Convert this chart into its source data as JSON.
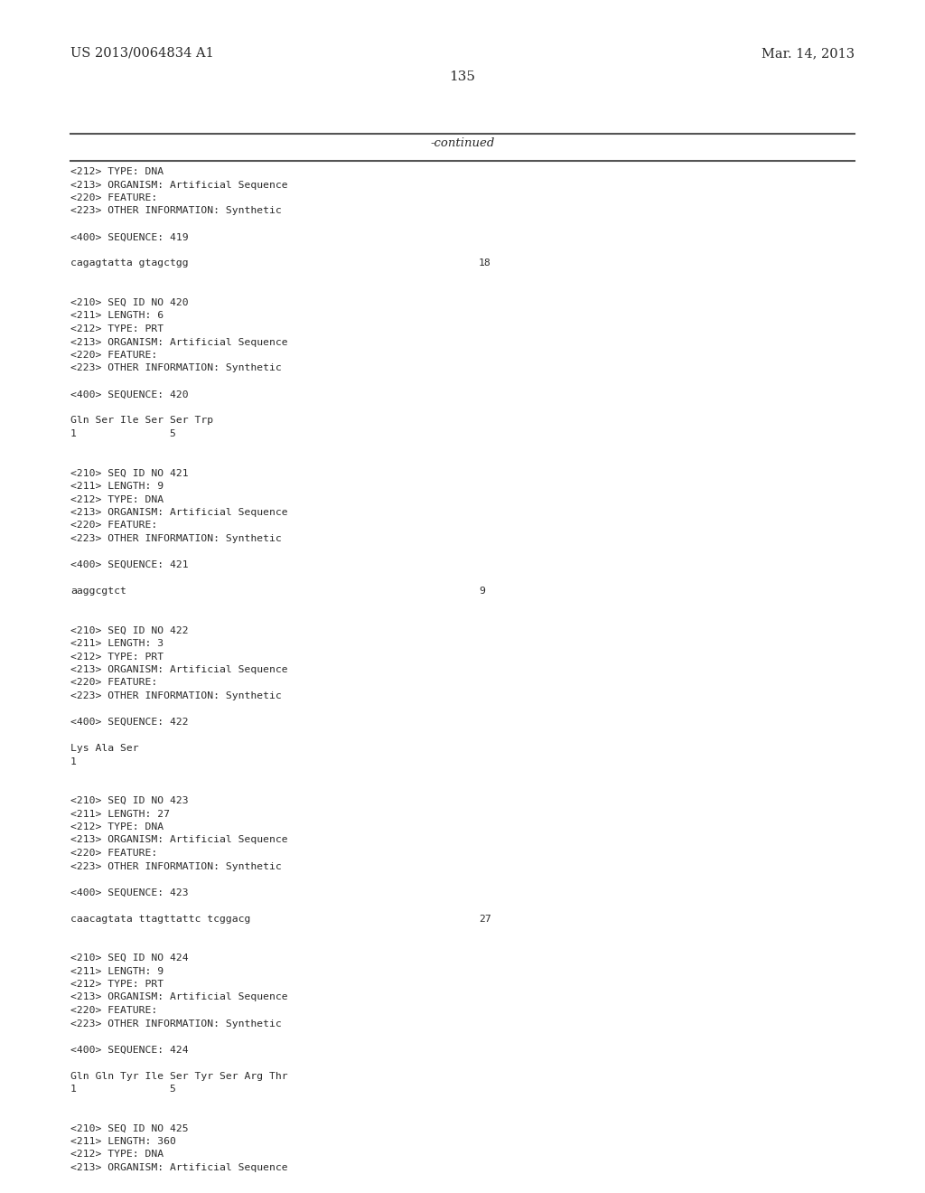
{
  "bg_color": "#ffffff",
  "text_color": "#2a2a2a",
  "header_left": "US 2013/0064834 A1",
  "header_right": "Mar. 14, 2013",
  "page_number": "135",
  "continued_label": "-continued",
  "lines": [
    {
      "text": "<212> TYPE: DNA",
      "blank": false
    },
    {
      "text": "<213> ORGANISM: Artificial Sequence",
      "blank": false
    },
    {
      "text": "<220> FEATURE:",
      "blank": false
    },
    {
      "text": "<223> OTHER INFORMATION: Synthetic",
      "blank": false
    },
    {
      "text": "",
      "blank": true
    },
    {
      "text": "<400> SEQUENCE: 419",
      "blank": false
    },
    {
      "text": "",
      "blank": true
    },
    {
      "text": "cagagtatta gtagctgg",
      "blank": false,
      "num": "18",
      "has_num": true
    },
    {
      "text": "",
      "blank": true
    },
    {
      "text": "",
      "blank": true
    },
    {
      "text": "<210> SEQ ID NO 420",
      "blank": false
    },
    {
      "text": "<211> LENGTH: 6",
      "blank": false
    },
    {
      "text": "<212> TYPE: PRT",
      "blank": false
    },
    {
      "text": "<213> ORGANISM: Artificial Sequence",
      "blank": false
    },
    {
      "text": "<220> FEATURE:",
      "blank": false
    },
    {
      "text": "<223> OTHER INFORMATION: Synthetic",
      "blank": false
    },
    {
      "text": "",
      "blank": true
    },
    {
      "text": "<400> SEQUENCE: 420",
      "blank": false
    },
    {
      "text": "",
      "blank": true
    },
    {
      "text": "Gln Ser Ile Ser Ser Trp",
      "blank": false
    },
    {
      "text": "1               5",
      "blank": false
    },
    {
      "text": "",
      "blank": true
    },
    {
      "text": "",
      "blank": true
    },
    {
      "text": "<210> SEQ ID NO 421",
      "blank": false
    },
    {
      "text": "<211> LENGTH: 9",
      "blank": false
    },
    {
      "text": "<212> TYPE: DNA",
      "blank": false
    },
    {
      "text": "<213> ORGANISM: Artificial Sequence",
      "blank": false
    },
    {
      "text": "<220> FEATURE:",
      "blank": false
    },
    {
      "text": "<223> OTHER INFORMATION: Synthetic",
      "blank": false
    },
    {
      "text": "",
      "blank": true
    },
    {
      "text": "<400> SEQUENCE: 421",
      "blank": false
    },
    {
      "text": "",
      "blank": true
    },
    {
      "text": "aaggcgtct",
      "blank": false,
      "num": "9",
      "has_num": true
    },
    {
      "text": "",
      "blank": true
    },
    {
      "text": "",
      "blank": true
    },
    {
      "text": "<210> SEQ ID NO 422",
      "blank": false
    },
    {
      "text": "<211> LENGTH: 3",
      "blank": false
    },
    {
      "text": "<212> TYPE: PRT",
      "blank": false
    },
    {
      "text": "<213> ORGANISM: Artificial Sequence",
      "blank": false
    },
    {
      "text": "<220> FEATURE:",
      "blank": false
    },
    {
      "text": "<223> OTHER INFORMATION: Synthetic",
      "blank": false
    },
    {
      "text": "",
      "blank": true
    },
    {
      "text": "<400> SEQUENCE: 422",
      "blank": false
    },
    {
      "text": "",
      "blank": true
    },
    {
      "text": "Lys Ala Ser",
      "blank": false
    },
    {
      "text": "1",
      "blank": false
    },
    {
      "text": "",
      "blank": true
    },
    {
      "text": "",
      "blank": true
    },
    {
      "text": "<210> SEQ ID NO 423",
      "blank": false
    },
    {
      "text": "<211> LENGTH: 27",
      "blank": false
    },
    {
      "text": "<212> TYPE: DNA",
      "blank": false
    },
    {
      "text": "<213> ORGANISM: Artificial Sequence",
      "blank": false
    },
    {
      "text": "<220> FEATURE:",
      "blank": false
    },
    {
      "text": "<223> OTHER INFORMATION: Synthetic",
      "blank": false
    },
    {
      "text": "",
      "blank": true
    },
    {
      "text": "<400> SEQUENCE: 423",
      "blank": false
    },
    {
      "text": "",
      "blank": true
    },
    {
      "text": "caacagtata ttagttattc tcggacg",
      "blank": false,
      "num": "27",
      "has_num": true
    },
    {
      "text": "",
      "blank": true
    },
    {
      "text": "",
      "blank": true
    },
    {
      "text": "<210> SEQ ID NO 424",
      "blank": false
    },
    {
      "text": "<211> LENGTH: 9",
      "blank": false
    },
    {
      "text": "<212> TYPE: PRT",
      "blank": false
    },
    {
      "text": "<213> ORGANISM: Artificial Sequence",
      "blank": false
    },
    {
      "text": "<220> FEATURE:",
      "blank": false
    },
    {
      "text": "<223> OTHER INFORMATION: Synthetic",
      "blank": false
    },
    {
      "text": "",
      "blank": true
    },
    {
      "text": "<400> SEQUENCE: 424",
      "blank": false
    },
    {
      "text": "",
      "blank": true
    },
    {
      "text": "Gln Gln Tyr Ile Ser Tyr Ser Arg Thr",
      "blank": false
    },
    {
      "text": "1               5",
      "blank": false
    },
    {
      "text": "",
      "blank": true
    },
    {
      "text": "",
      "blank": true
    },
    {
      "text": "<210> SEQ ID NO 425",
      "blank": false
    },
    {
      "text": "<211> LENGTH: 360",
      "blank": false
    },
    {
      "text": "<212> TYPE: DNA",
      "blank": false
    },
    {
      "text": "<213> ORGANISM: Artificial Sequence",
      "blank": false
    }
  ]
}
